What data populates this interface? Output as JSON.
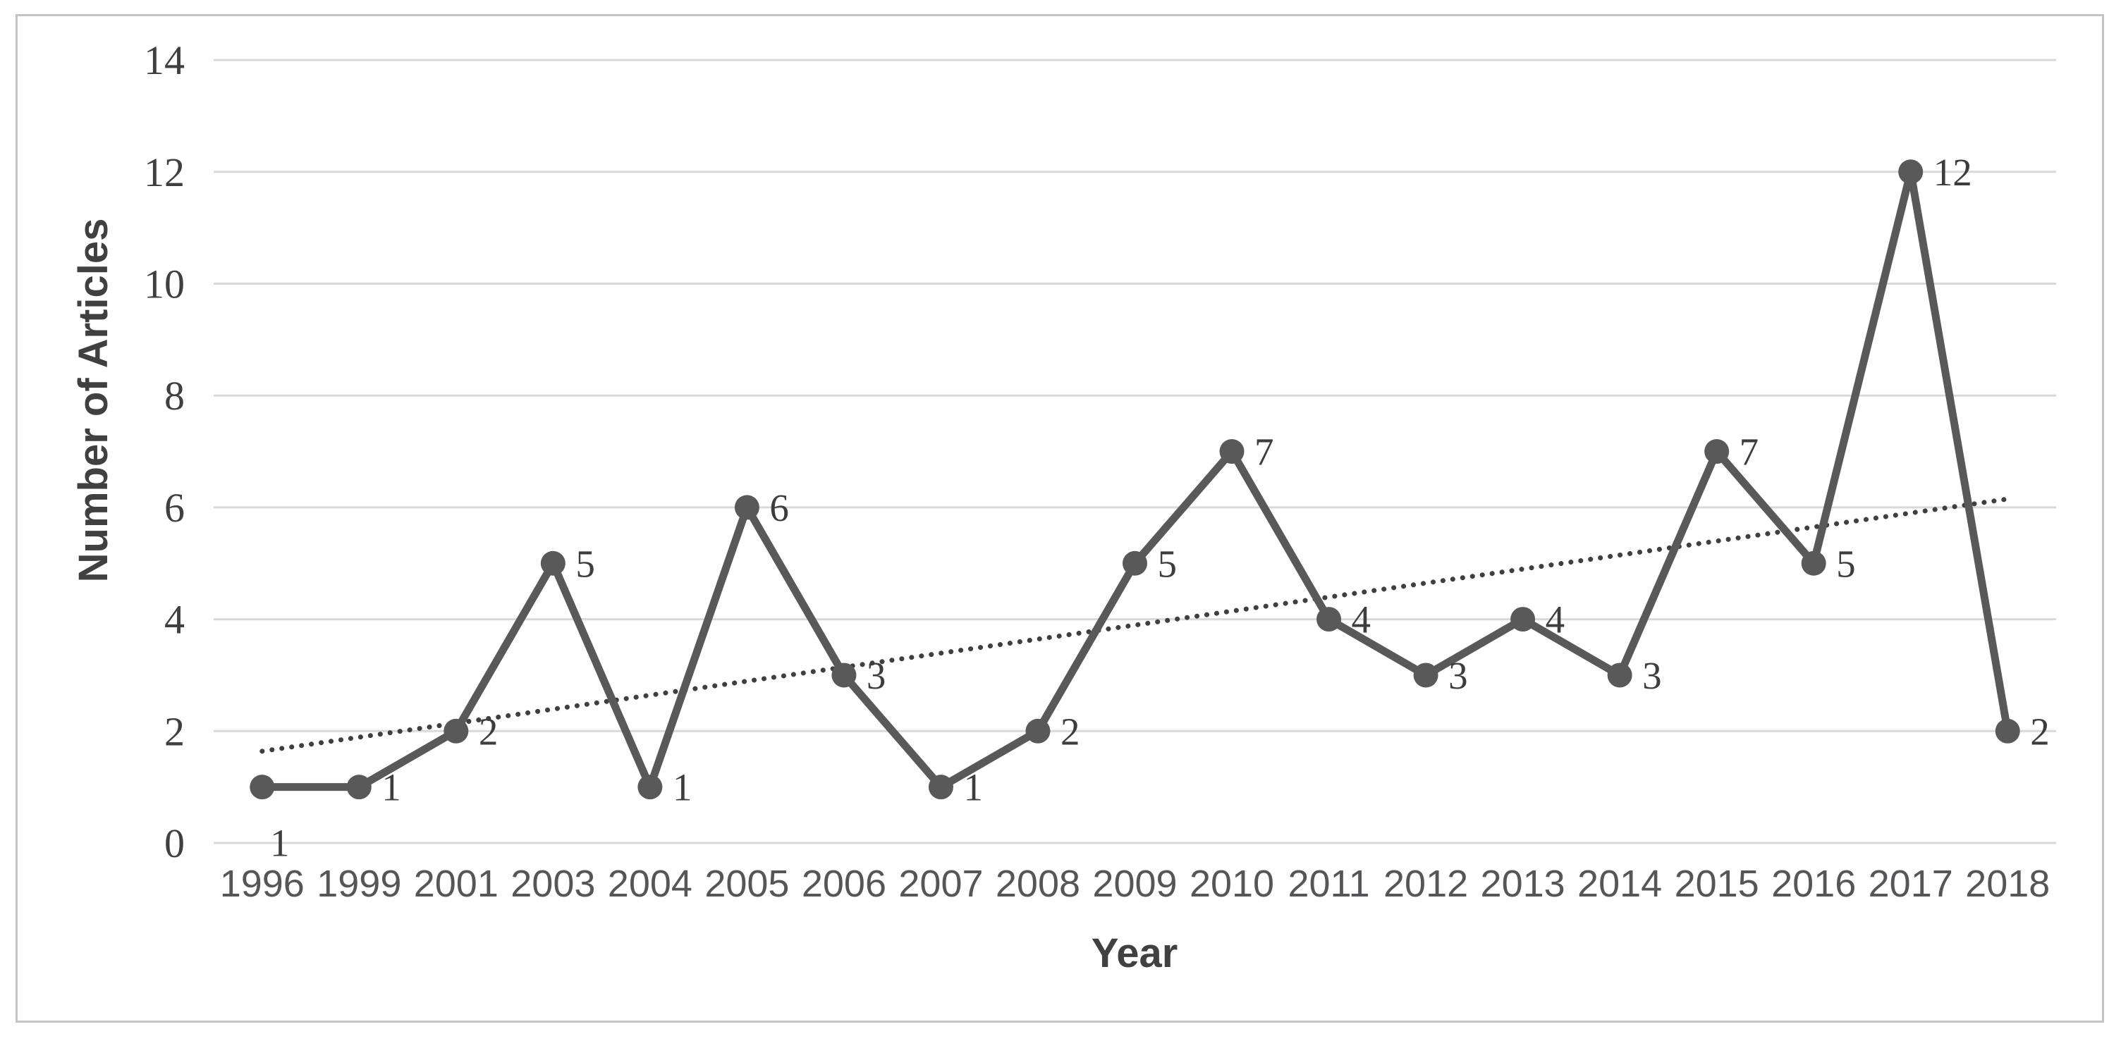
{
  "chart_data": {
    "type": "line",
    "title": "",
    "xlabel": "Year",
    "ylabel": "Number of Articles",
    "categories": [
      "1996",
      "1999",
      "2001",
      "2003",
      "2004",
      "2005",
      "2006",
      "2007",
      "2008",
      "2009",
      "2010",
      "2011",
      "2012",
      "2013",
      "2014",
      "2015",
      "2016",
      "2017",
      "2018"
    ],
    "series": [
      {
        "name": "Number of Articles",
        "values": [
          1,
          1,
          2,
          5,
          1,
          6,
          3,
          1,
          2,
          5,
          7,
          4,
          3,
          4,
          3,
          7,
          5,
          12,
          2
        ],
        "data_labels_visible": true
      }
    ],
    "y_ticks": [
      0,
      2,
      4,
      6,
      8,
      10,
      12,
      14
    ],
    "ylim": [
      0,
      14
    ],
    "grid": "horizontal",
    "legend": "none",
    "trendline": {
      "type": "linear",
      "style": "dotted",
      "start_value": 1.64,
      "end_value": 6.15
    },
    "colors": {
      "series": "#595959",
      "marker": "#595959",
      "trend": "#3f3f3f",
      "gridline": "#d9d9d9",
      "tick_label": "#3f3f3f",
      "axis_title": "#404040",
      "frame_border": "#c4c4c4",
      "background": "#ffffff"
    }
  }
}
